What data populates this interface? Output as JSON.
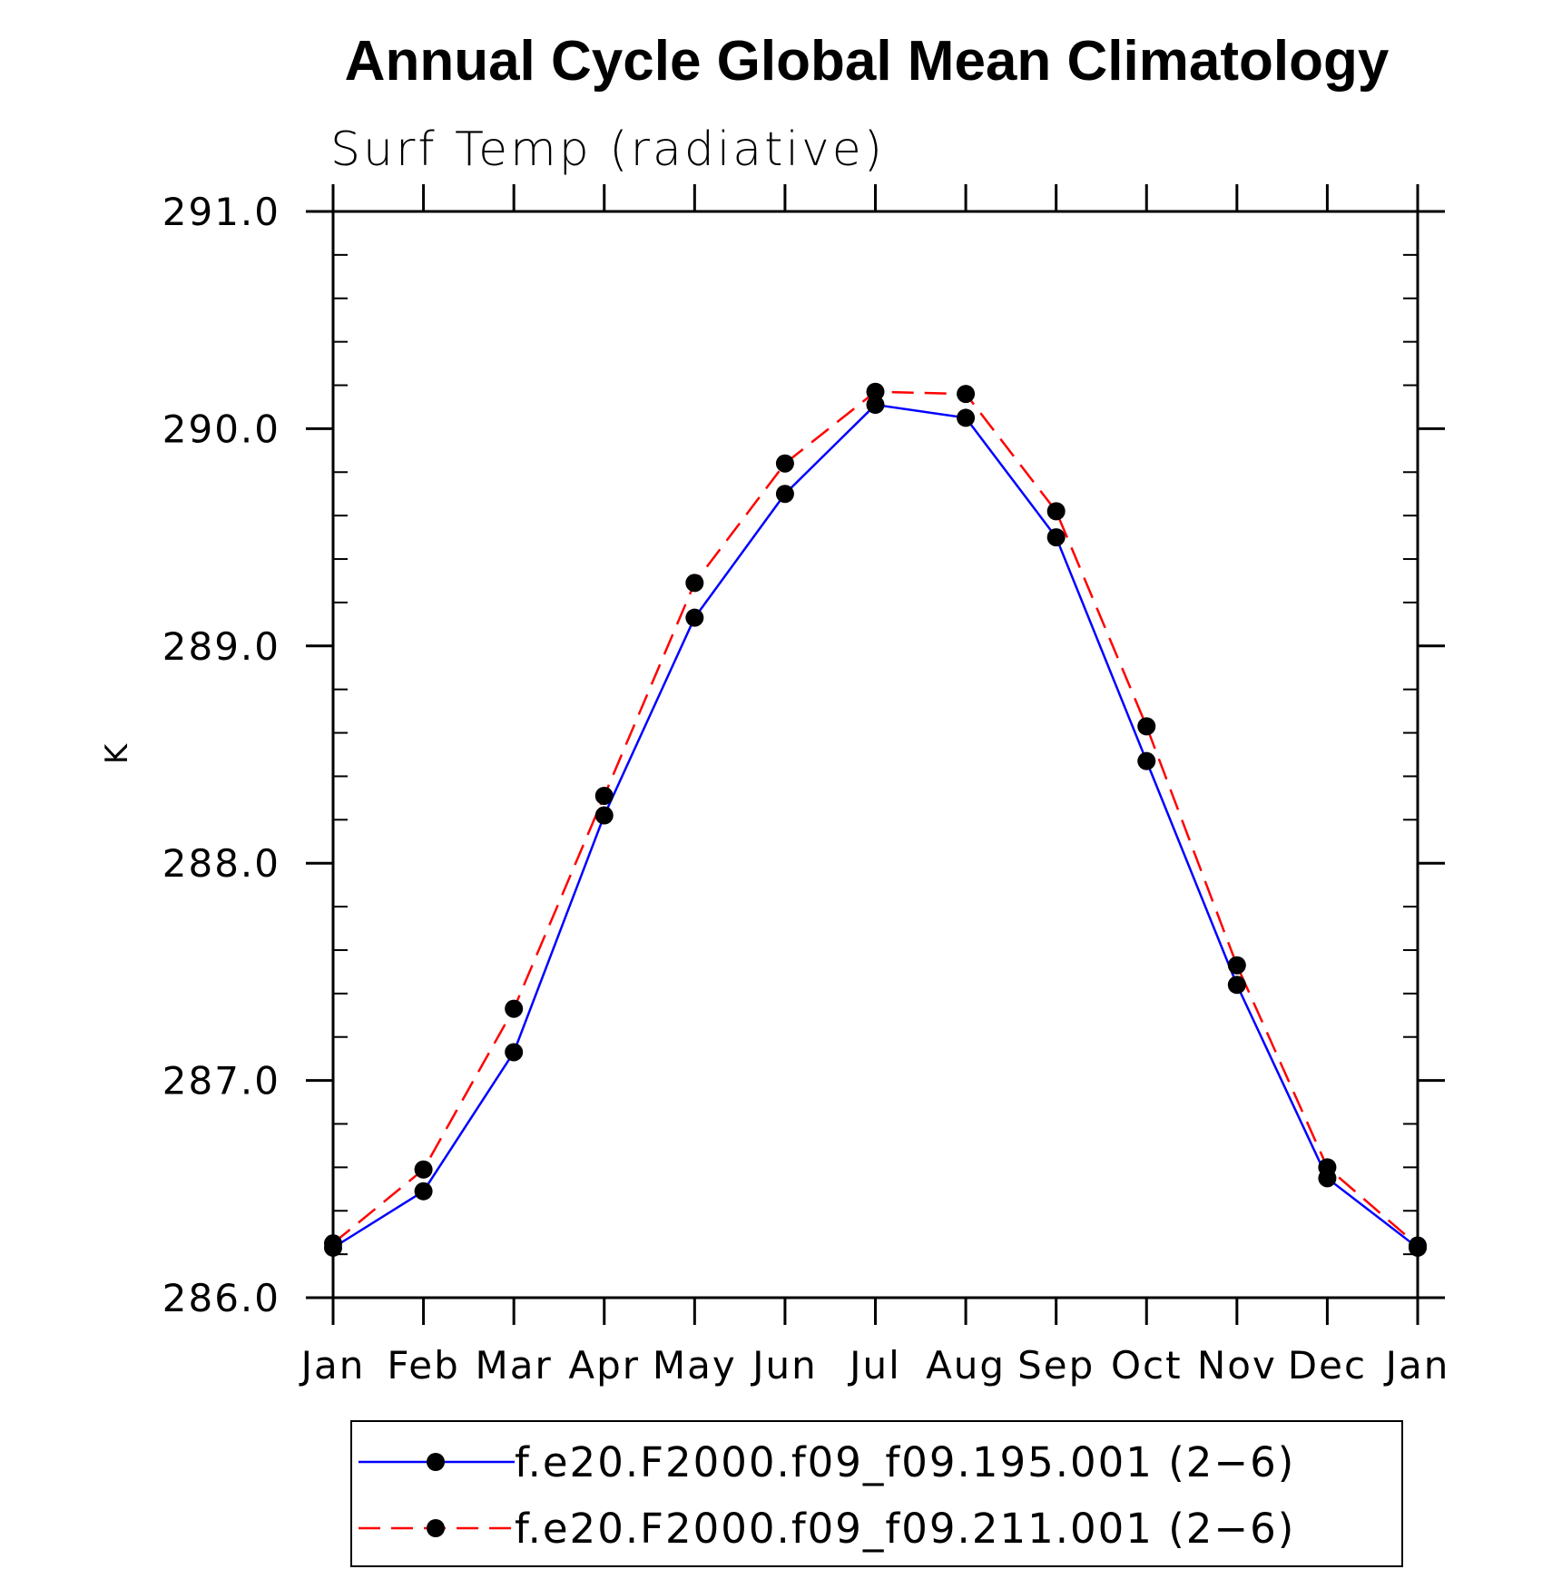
{
  "chart_data": {
    "type": "line",
    "title": "Annual Cycle Global Mean Climatology",
    "subtitle": "Surf Temp (radiative)",
    "ylabel": "K",
    "xlabel": "",
    "categories": [
      "Jan",
      "Feb",
      "Mar",
      "Apr",
      "May",
      "Jun",
      "Jul",
      "Aug",
      "Sep",
      "Oct",
      "Nov",
      "Dec",
      "Jan"
    ],
    "ylim": [
      286.0,
      291.0
    ],
    "yticks": [
      "286.0",
      "287.0",
      "288.0",
      "289.0",
      "290.0",
      "291.0"
    ],
    "series": [
      {
        "name": "f.e20.F2000.f09_f09.195.001 (2−6)",
        "color": "#0000ff",
        "line_style": "solid",
        "marker": "filled-circle",
        "values": [
          286.23,
          286.49,
          287.13,
          288.22,
          289.13,
          289.7,
          290.11,
          290.05,
          289.5,
          288.47,
          287.44,
          286.55,
          286.23
        ]
      },
      {
        "name": "f.e20.F2000.f09_f09.211.001 (2−6)",
        "color": "#ff0000",
        "line_style": "dashed",
        "marker": "filled-circle",
        "values": [
          286.25,
          286.59,
          287.33,
          288.31,
          289.29,
          289.84,
          290.17,
          290.16,
          289.62,
          288.63,
          287.53,
          286.6,
          286.24
        ]
      }
    ],
    "legend_position": "bottom",
    "grid": false
  }
}
